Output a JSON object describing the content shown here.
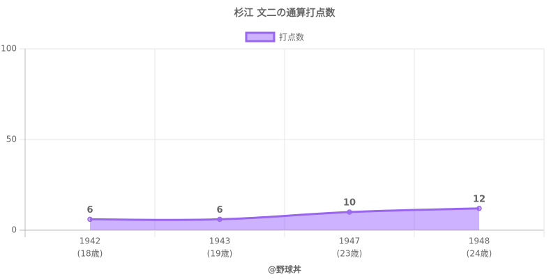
{
  "chart_data": {
    "type": "line",
    "title": "杉江 文二の通算打点数",
    "categories": [
      "1942",
      "1943",
      "1947",
      "1948"
    ],
    "category_sublabels": [
      "(18歳)",
      "(19歳)",
      "(23歳)",
      "(24歳)"
    ],
    "x_label": "@野球丼",
    "series": [
      {
        "name": "打点数",
        "color": "#9966ee",
        "fill": "rgba(153,102,255,0.5)",
        "values": [
          6,
          6,
          10,
          12
        ]
      }
    ],
    "ylim": [
      0,
      100
    ],
    "yticks": [
      0,
      50,
      100
    ],
    "grid": true,
    "legend": "top",
    "area": true,
    "smooth": true,
    "data_labels": true
  }
}
